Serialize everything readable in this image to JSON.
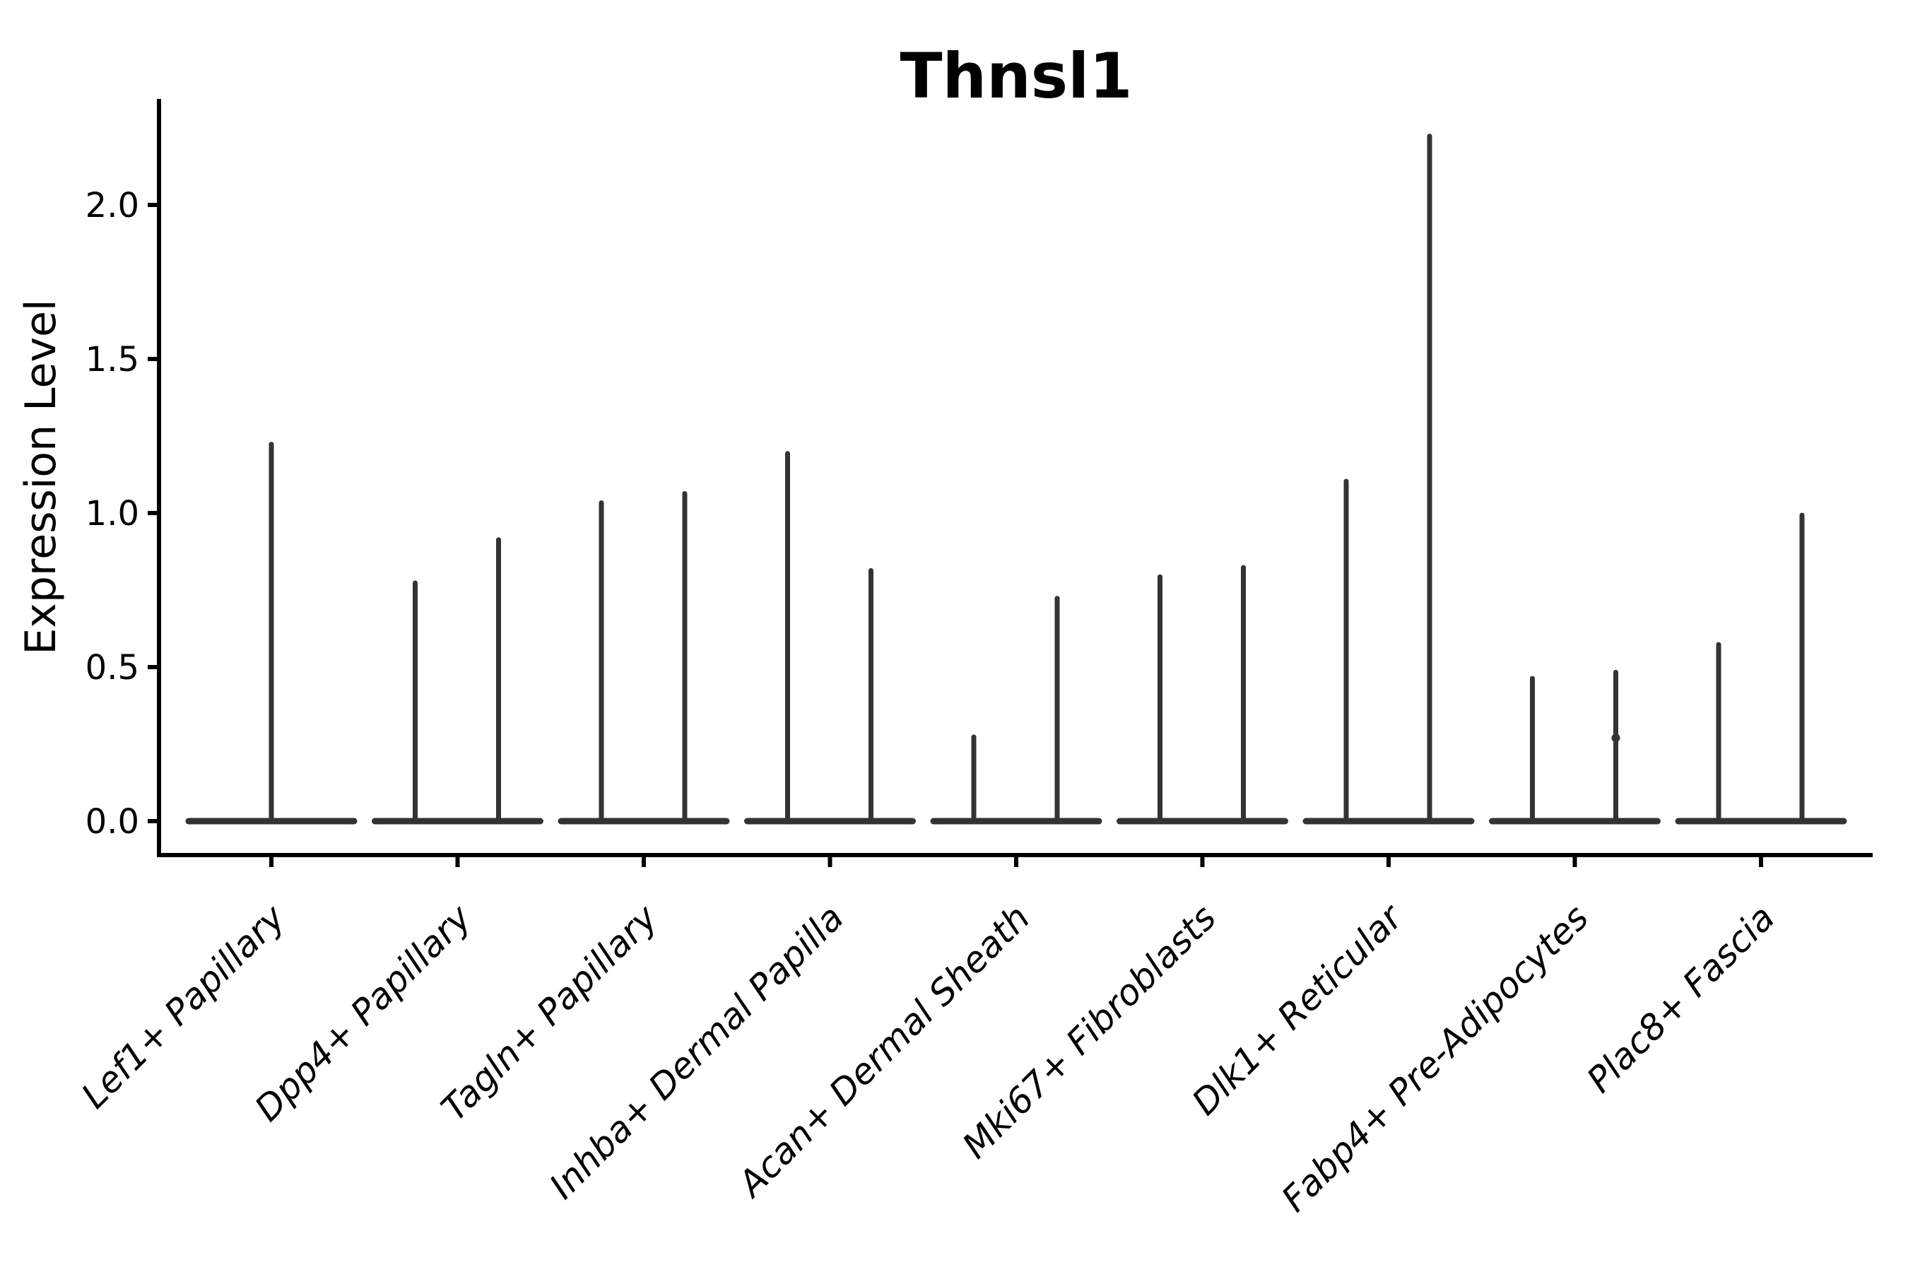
{
  "title": "Thnsl1",
  "y_axis": {
    "label": "Expression Level",
    "tick_labels": [
      "0.0",
      "0.5",
      "1.0",
      "1.5",
      "2.0"
    ]
  },
  "chart_data": {
    "type": "violin",
    "title": "Thnsl1",
    "xlabel": "",
    "ylabel": "Expression Level",
    "ylim": [
      0,
      2.34
    ],
    "y_ticks": [
      0.0,
      0.5,
      1.0,
      1.5,
      2.0
    ],
    "grid": false,
    "legend": "none",
    "categories": [
      "Lef1+ Papillary",
      "Dpp4+ Papillary",
      "Tagln+ Papillary",
      "Inhba+ Dermal Papilla",
      "Acan+ Dermal Sheath",
      "Mki67+ Fibroblasts",
      "Dlk1+ Reticular",
      "Fabp4+ Pre-Adipocytes",
      "Plac8+ Fascia"
    ],
    "groups": [
      {
        "category": "Lef1+ Papillary",
        "violins": [
          {
            "offset": 0,
            "max": 1.23
          }
        ]
      },
      {
        "category": "Dpp4+ Papillary",
        "violins": [
          {
            "offset": -60,
            "max": 0.78
          },
          {
            "offset": 58,
            "max": 0.92
          }
        ]
      },
      {
        "category": "Tagln+ Papillary",
        "violins": [
          {
            "offset": -60,
            "max": 1.04
          },
          {
            "offset": 58,
            "max": 1.07
          }
        ]
      },
      {
        "category": "Inhba+ Dermal Papilla",
        "violins": [
          {
            "offset": -60,
            "max": 1.2
          },
          {
            "offset": 58,
            "max": 0.82
          }
        ]
      },
      {
        "category": "Acan+ Dermal Sheath",
        "violins": [
          {
            "offset": -60,
            "max": 0.28
          },
          {
            "offset": 58,
            "max": 0.73
          }
        ]
      },
      {
        "category": "Mki67+ Fibroblasts",
        "violins": [
          {
            "offset": -60,
            "max": 0.8
          },
          {
            "offset": 58,
            "max": 0.83
          }
        ]
      },
      {
        "category": "Dlk1+ Reticular",
        "violins": [
          {
            "offset": -60,
            "max": 1.11
          },
          {
            "offset": 58,
            "max": 2.23
          }
        ]
      },
      {
        "category": "Fabp4+ Pre-Adipocytes",
        "violins": [
          {
            "offset": -60,
            "max": 0.47
          },
          {
            "offset": 58,
            "max": 0.49,
            "node_values": [
              0.27
            ]
          }
        ]
      },
      {
        "category": "Plac8+ Fascia",
        "violins": [
          {
            "offset": -60,
            "max": 0.58
          },
          {
            "offset": 58,
            "max": 1.0
          }
        ]
      }
    ],
    "style": {
      "violin_color": "#333333",
      "axis_color": "#000000",
      "background": "#ffffff"
    }
  }
}
